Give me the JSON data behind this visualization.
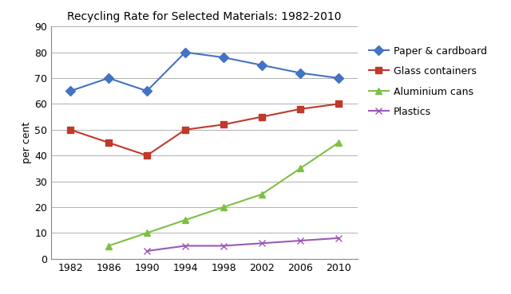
{
  "title": "Recycling Rate for Selected Materials: 1982-2010",
  "ylabel": "per cent",
  "years": [
    1982,
    1986,
    1990,
    1994,
    1998,
    2002,
    2006,
    2010
  ],
  "series": [
    {
      "label": "Paper & cardboard",
      "values": [
        65,
        70,
        65,
        80,
        78,
        75,
        72,
        70
      ],
      "color": "#4472C4",
      "marker": "D",
      "markersize": 6,
      "linewidth": 1.5
    },
    {
      "label": "Glass containers",
      "values": [
        50,
        45,
        40,
        50,
        52,
        55,
        58,
        60
      ],
      "color": "#C0392B",
      "marker": "s",
      "markersize": 6,
      "linewidth": 1.5
    },
    {
      "label": "Aluminium cans",
      "values": [
        null,
        5,
        10,
        15,
        20,
        25,
        35,
        45
      ],
      "color": "#7DC043",
      "marker": "^",
      "markersize": 6,
      "linewidth": 1.5
    },
    {
      "label": "Plastics",
      "values": [
        null,
        null,
        3,
        5,
        5,
        6,
        7,
        8
      ],
      "color": "#9B59B6",
      "marker": "x",
      "markersize": 6,
      "linewidth": 1.5
    }
  ],
  "ylim": [
    0,
    90
  ],
  "yticks": [
    0,
    10,
    20,
    30,
    40,
    50,
    60,
    70,
    80,
    90
  ],
  "xticks": [
    1982,
    1986,
    1990,
    1994,
    1998,
    2002,
    2006,
    2010
  ],
  "xlim": [
    1980,
    2012
  ],
  "background_color": "#ffffff",
  "grid_color": "#b0b0b0",
  "title_fontsize": 10,
  "axis_fontsize": 9,
  "legend_fontsize": 9
}
